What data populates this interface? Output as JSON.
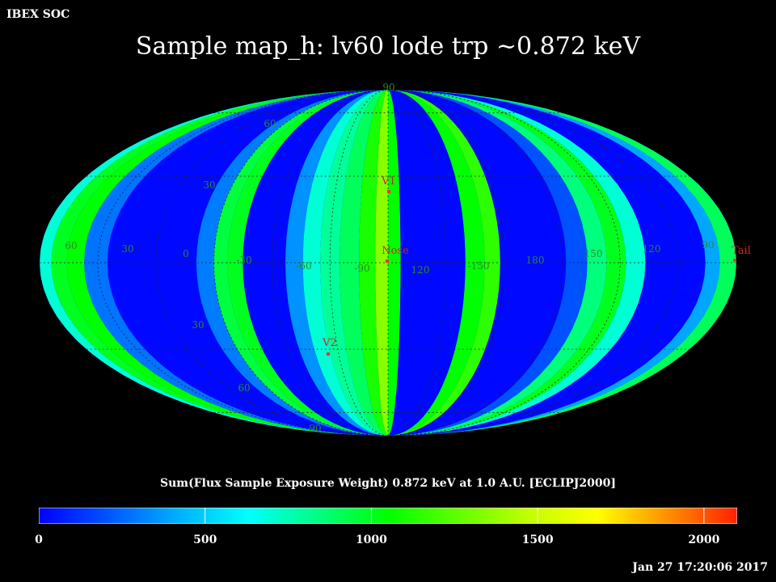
{
  "header": {
    "corner_label": "IBEX SOC",
    "title": "Sample map_h: lv60 lode trp ~0.872 keV",
    "timestamp": "Jan 27 17:20:06 2017"
  },
  "map": {
    "projection": "Mollweide (Hammer-Aitoff)",
    "frame": "ECLIPJ2000",
    "longitude_labels": [
      "60",
      "30",
      "0",
      "-30",
      "-60",
      "-90",
      "120",
      "-150",
      "180",
      "150",
      "120",
      "90"
    ],
    "latitude_labels": {
      "top_pole": "90",
      "bottom_pole": "90",
      "north": [
        "60",
        "30"
      ],
      "south": [
        "30",
        "60"
      ]
    },
    "markers": [
      {
        "label": "V1",
        "color": "#ff3030"
      },
      {
        "label": "Nose",
        "color": "#ff3030"
      },
      {
        "label": "V2",
        "color": "#ff3030"
      },
      {
        "label": "Tail",
        "color": "#ff3030"
      }
    ],
    "stripes": [
      {
        "center_deg": -178,
        "value": 700
      },
      {
        "center_deg": -170,
        "value": 1000
      },
      {
        "center_deg": -162,
        "value": 1050
      },
      {
        "center_deg": -152,
        "value": 280
      },
      {
        "center_deg": -138,
        "value": 20
      },
      {
        "center_deg": -120,
        "value": 20
      },
      {
        "center_deg": -104,
        "value": 20
      },
      {
        "center_deg": -94,
        "value": 300
      },
      {
        "center_deg": -86,
        "value": 950
      },
      {
        "center_deg": -80,
        "value": 1000
      },
      {
        "center_deg": -70,
        "value": 20
      },
      {
        "center_deg": -58,
        "value": 20
      },
      {
        "center_deg": -48,
        "value": 350
      },
      {
        "center_deg": -40,
        "value": 700
      },
      {
        "center_deg": -30,
        "value": 800
      },
      {
        "center_deg": -20,
        "value": 900
      },
      {
        "center_deg": -10,
        "value": 1100
      },
      {
        "center_deg": -3,
        "value": 1350
      },
      {
        "center_deg": 3,
        "value": 1050
      },
      {
        "center_deg": 10,
        "value": 20
      },
      {
        "center_deg": 22,
        "value": 20
      },
      {
        "center_deg": 34,
        "value": 20
      },
      {
        "center_deg": 46,
        "value": 1050
      },
      {
        "center_deg": 54,
        "value": 1150
      },
      {
        "center_deg": 62,
        "value": 20
      },
      {
        "center_deg": 74,
        "value": 20
      },
      {
        "center_deg": 86,
        "value": 20
      },
      {
        "center_deg": 98,
        "value": 200
      },
      {
        "center_deg": 108,
        "value": 850
      },
      {
        "center_deg": 118,
        "value": 1000
      },
      {
        "center_deg": 128,
        "value": 700
      },
      {
        "center_deg": 138,
        "value": 20
      },
      {
        "center_deg": 150,
        "value": 20
      },
      {
        "center_deg": 160,
        "value": 20
      },
      {
        "center_deg": 168,
        "value": 400
      },
      {
        "center_deg": 175,
        "value": 900
      }
    ]
  },
  "colorbar": {
    "title": "Sum(Flux Sample Exposure Weight)  0.872 keV at 1.0 A.U. [ECLIPJ2000]",
    "min": 0,
    "max": 2100,
    "ticks": [
      "0",
      "500",
      "1000",
      "1500",
      "2000"
    ],
    "stops": [
      "#0000ff",
      "#0055ff",
      "#00b0ff",
      "#00ffff",
      "#00ff80",
      "#00ff00",
      "#60ff00",
      "#c0ff00",
      "#ffff00",
      "#ff9000",
      "#ff2000"
    ]
  }
}
